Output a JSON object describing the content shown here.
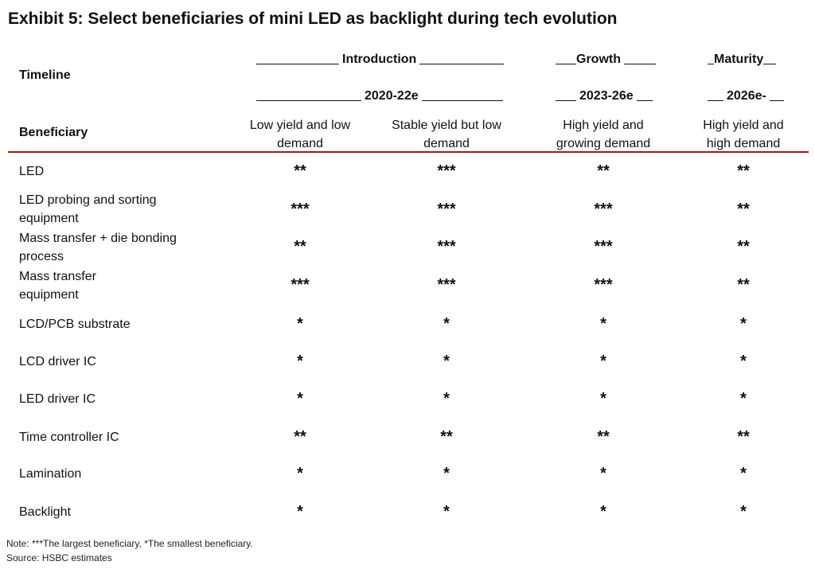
{
  "title": "Exhibit 5: Select beneficiaries of mini LED as backlight during tech evolution",
  "header": {
    "timeline_label": "Timeline",
    "beneficiary_label": "Beneficiary",
    "phases": [
      {
        "label": "Introduction",
        "period": "2020-22e"
      },
      {
        "label": "Growth",
        "period": "2023-26e"
      },
      {
        "label": "Maturity",
        "period": "2026e-"
      }
    ],
    "stages": [
      "Low yield and low demand",
      "Stable yield but low demand",
      "High yield and growing demand",
      "High yield and high demand"
    ]
  },
  "rows": [
    {
      "label": "LED",
      "ratings": [
        "**",
        "***",
        "**",
        "**"
      ]
    },
    {
      "label": "LED probing and sorting equipment",
      "ratings": [
        "***",
        "***",
        "***",
        "**"
      ]
    },
    {
      "label": "Mass transfer + die bonding process",
      "ratings": [
        "**",
        "***",
        "***",
        "**"
      ]
    },
    {
      "label": "Mass transfer equipment",
      "ratings": [
        "***",
        "***",
        "***",
        "**"
      ]
    },
    {
      "label": "LCD/PCB substrate",
      "ratings": [
        "*",
        "*",
        "*",
        "*"
      ]
    },
    {
      "label": "LCD driver IC",
      "ratings": [
        "*",
        "*",
        "*",
        "*"
      ]
    },
    {
      "label": "LED driver IC",
      "ratings": [
        "*",
        "*",
        "*",
        "*"
      ]
    },
    {
      "label": "Time controller IC",
      "ratings": [
        "**",
        "**",
        "**",
        "**"
      ]
    },
    {
      "label": "Lamination",
      "ratings": [
        "*",
        "*",
        "*",
        "*"
      ]
    },
    {
      "label": "Backlight",
      "ratings": [
        "*",
        "*",
        "*",
        "*"
      ]
    }
  ],
  "note": "Note: ***The largest beneficiary, *The smallest beneficiary.",
  "source": "Source: HSBC estimates",
  "colors": {
    "rule": "#9b1b1b",
    "text": "#111111"
  }
}
